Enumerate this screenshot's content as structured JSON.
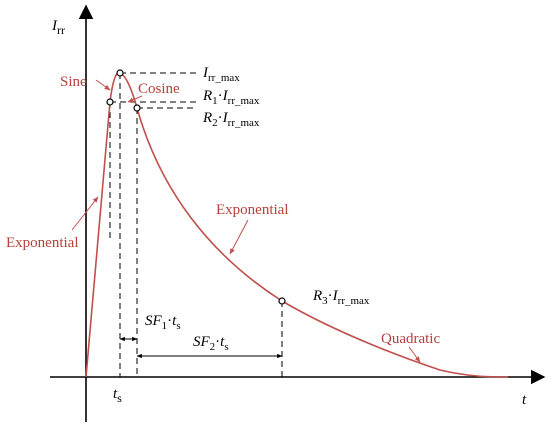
{
  "labels": {
    "y_axis_main": "I",
    "y_axis_sub": "rr",
    "x_axis": "t",
    "ts_main": "t",
    "ts_sub": "s",
    "sine": "Sine",
    "cosine": "Cosine",
    "exponential_rise": "Exponential",
    "exponential_decay": "Exponential",
    "quadratic": "Quadratic",
    "irr_max_main": "I",
    "irr_max_sub": "rr_max",
    "r1_main": "R",
    "r1_sub": "1",
    "r2_main": "R",
    "r2_sub": "2",
    "r3_main": "R",
    "r3_sub": "3",
    "dot": "·",
    "sf1_main": "SF",
    "sf1_sub": "1",
    "sf2_main": "SF",
    "sf2_sub": "2",
    "t_main": "t",
    "t_sub": "s"
  },
  "colors": {
    "curve": "#c0504d",
    "segment_label": "#b5413b",
    "axis": "#000000"
  }
}
